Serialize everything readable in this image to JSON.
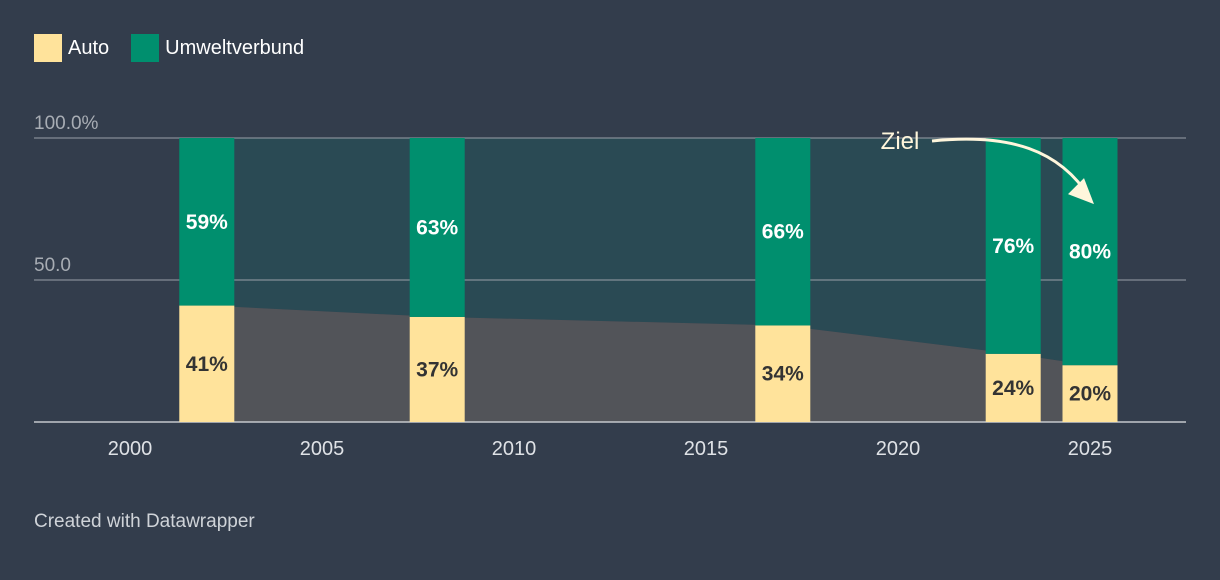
{
  "legend": {
    "auto": {
      "label": "Auto",
      "color": "#ffe39b"
    },
    "umwelt": {
      "label": "Umweltverbund",
      "color": "#008f6e"
    }
  },
  "footer": {
    "credit": "Created with Datawrapper"
  },
  "chart_data": {
    "type": "bar",
    "stacked": true,
    "title": "",
    "xlabel": "",
    "ylabel": "",
    "ylim": [
      0,
      100
    ],
    "xlim": [
      1997.5,
      2027.5
    ],
    "y_ticks": [
      {
        "value": 100,
        "label": "100.0%"
      },
      {
        "value": 50,
        "label": "50.0"
      }
    ],
    "x_ticks": [
      2000,
      2005,
      2010,
      2015,
      2020,
      2025
    ],
    "categories": [
      2002,
      2008,
      2017,
      2023,
      2025
    ],
    "series": [
      {
        "name": "Auto",
        "color": "#ffe39b",
        "values": [
          41,
          37,
          34,
          24,
          20
        ],
        "labels": [
          "41%",
          "37%",
          "34%",
          "24%",
          "20%"
        ]
      },
      {
        "name": "Umweltverbund",
        "color": "#008f6e",
        "values": [
          59,
          63,
          66,
          76,
          80
        ],
        "labels": [
          "59%",
          "63%",
          "66%",
          "76%",
          "80%"
        ]
      }
    ],
    "area_colors": {
      "auto": "#525459",
      "umwelt": "#2a4a54"
    },
    "annotation": {
      "text": "Ziel",
      "target_year": 2025,
      "target_value": 76
    }
  }
}
